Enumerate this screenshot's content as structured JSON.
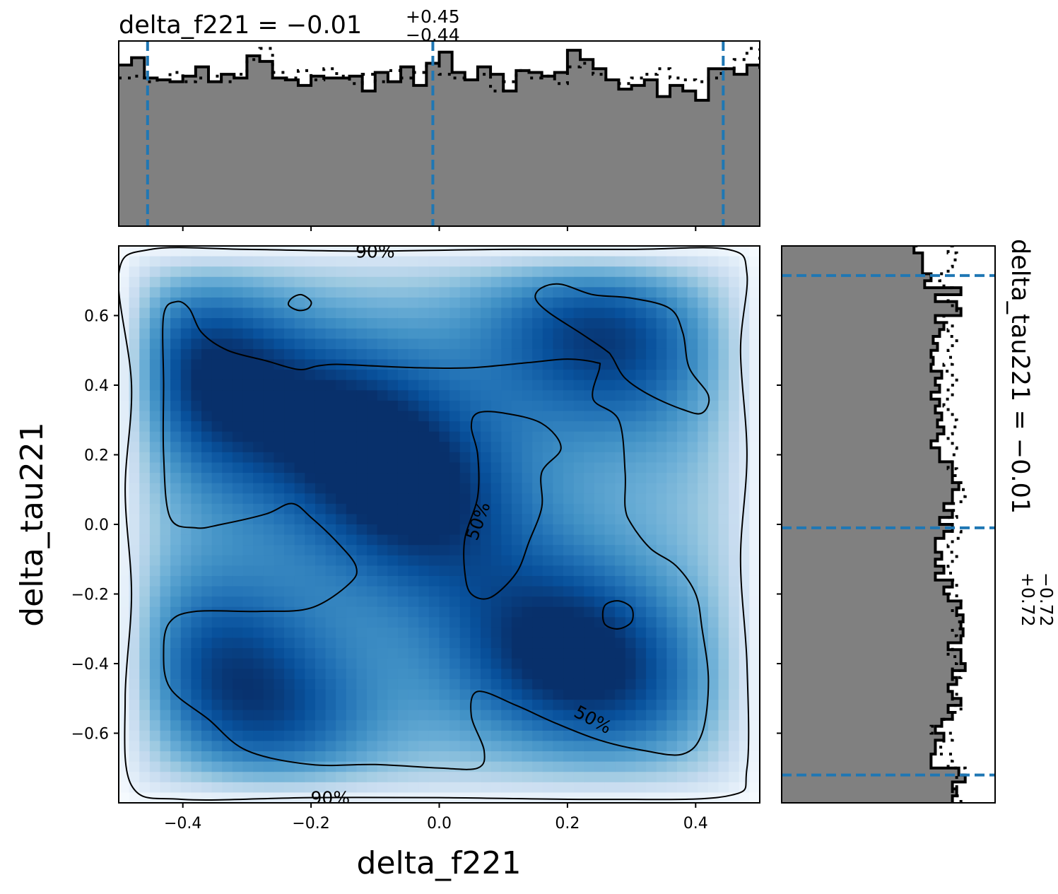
{
  "chart_data": [
    {
      "panel": "top-marginal",
      "type": "histogram",
      "title": {
        "param": "delta_f221",
        "median": "−0.01",
        "plus": "+0.45",
        "minus": "−0.44"
      },
      "xlim": [
        -0.5,
        0.5
      ],
      "x_ticks": [
        -0.4,
        -0.2,
        0.0,
        0.2,
        0.4
      ],
      "quantile_lines": [
        -0.455,
        -0.01,
        0.443
      ],
      "bin_edges_start": -0.5,
      "bin_width": 0.02,
      "solid_heights": [
        0.87,
        0.91,
        0.8,
        0.79,
        0.78,
        0.81,
        0.86,
        0.78,
        0.82,
        0.8,
        0.92,
        0.89,
        0.8,
        0.79,
        0.76,
        0.81,
        0.8,
        0.8,
        0.81,
        0.73,
        0.83,
        0.78,
        0.86,
        0.76,
        0.88,
        0.94,
        0.83,
        0.79,
        0.86,
        0.82,
        0.73,
        0.84,
        0.83,
        0.81,
        0.83,
        0.95,
        0.9,
        0.85,
        0.79,
        0.74,
        0.76,
        0.79,
        0.7,
        0.76,
        0.73,
        0.68,
        0.85,
        0.85,
        0.82,
        0.87,
        0.87,
        0.87,
        0.79,
        0.82,
        0.8,
        0.83,
        0.76,
        0.78,
        0.74,
        0.75,
        0.72,
        0.84,
        0.79,
        0.84,
        0.75,
        0.84,
        0.81,
        0.73,
        0.82,
        0.81,
        0.86,
        0.84,
        0.71,
        0.87,
        0.72,
        0.68,
        0.92,
        0.75
      ],
      "dashed_heights": [
        0.8,
        0.81,
        0.78,
        0.79,
        0.83,
        0.78,
        0.8,
        0.81,
        0.78,
        0.82,
        0.9,
        0.96,
        0.83,
        0.8,
        0.84,
        0.79,
        0.85,
        0.81,
        0.77,
        0.82,
        0.78,
        0.84,
        0.8,
        0.83,
        0.88,
        0.82,
        0.8,
        0.79,
        0.82,
        0.73,
        0.78,
        0.84,
        0.8,
        0.81,
        0.77,
        0.86,
        0.88,
        0.82,
        0.79,
        0.77,
        0.8,
        0.82,
        0.85,
        0.8,
        0.79,
        0.78,
        0.8,
        0.85,
        0.9,
        0.96,
        0.84,
        0.78,
        0.75,
        0.8,
        0.83,
        0.81,
        0.76,
        0.8,
        0.82,
        0.86,
        0.84,
        0.86,
        0.88,
        0.82,
        0.8,
        0.84,
        0.86,
        0.78,
        0.82,
        0.8,
        0.85,
        0.84,
        0.88,
        0.84,
        0.82,
        0.86,
        0.88,
        0.8
      ]
    },
    {
      "panel": "joint",
      "type": "heatmap",
      "xlabel": "delta_f221",
      "ylabel": "delta_tau221",
      "xlim": [
        -0.5,
        0.5
      ],
      "ylim": [
        -0.8,
        0.8
      ],
      "x_ticks": [
        -0.4,
        -0.2,
        0.0,
        0.2,
        0.4
      ],
      "x_tick_labels": [
        "−0.4",
        "−0.2",
        "0.0",
        "0.2",
        "0.4"
      ],
      "y_ticks": [
        0.6,
        0.4,
        0.2,
        0.0,
        -0.2,
        -0.4,
        -0.6
      ],
      "y_tick_labels": [
        "0.6",
        "0.4",
        "0.2",
        "0.0",
        "−0.2",
        "−0.4",
        "−0.6"
      ],
      "colormap": "Blues",
      "density_peaks": [
        {
          "x": -0.36,
          "y": 0.36,
          "w": 1.0
        },
        {
          "x": -0.14,
          "y": 0.28,
          "w": 1.05
        },
        {
          "x": -0.02,
          "y": 0.05,
          "w": 1.1
        },
        {
          "x": 0.16,
          "y": -0.34,
          "w": 1.05
        },
        {
          "x": -0.38,
          "y": -0.37,
          "w": 0.95
        },
        {
          "x": -0.25,
          "y": -0.6,
          "w": 0.95
        },
        {
          "x": 0.3,
          "y": -0.47,
          "w": 0.85
        },
        {
          "x": 0.2,
          "y": 0.62,
          "w": 0.85
        },
        {
          "x": 0.32,
          "y": 0.5,
          "w": 0.75
        },
        {
          "x": -0.42,
          "y": 0.58,
          "w": 0.8
        }
      ],
      "contour_labels": [
        {
          "text": "90%",
          "x": -0.1,
          "y": 0.785,
          "angle": 0
        },
        {
          "text": "90%",
          "x": -0.17,
          "y": -0.785,
          "angle": 0
        },
        {
          "text": "50%",
          "x": 0.06,
          "y": 0.01,
          "angle": -70
        },
        {
          "text": "50%",
          "x": 0.24,
          "y": -0.56,
          "angle": 28
        }
      ],
      "contours": {
        "outer_90": [
          [
            -0.5,
            0.72
          ],
          [
            -0.45,
            0.79
          ],
          [
            -0.3,
            0.79
          ],
          [
            -0.12,
            0.785
          ],
          [
            0.1,
            0.79
          ],
          [
            0.3,
            0.79
          ],
          [
            0.45,
            0.79
          ],
          [
            0.48,
            0.72
          ],
          [
            0.47,
            0.5
          ],
          [
            0.48,
            0.2
          ],
          [
            0.47,
            -0.1
          ],
          [
            0.48,
            -0.4
          ],
          [
            0.48,
            -0.7
          ],
          [
            0.45,
            -0.78
          ],
          [
            0.25,
            -0.79
          ],
          [
            0.0,
            -0.785
          ],
          [
            -0.2,
            -0.785
          ],
          [
            -0.4,
            -0.79
          ],
          [
            -0.48,
            -0.75
          ],
          [
            -0.49,
            -0.5
          ],
          [
            -0.48,
            -0.2
          ],
          [
            -0.49,
            0.1
          ],
          [
            -0.48,
            0.4
          ]
        ],
        "left_50": [
          [
            -0.43,
            0.6
          ],
          [
            -0.41,
            0.64
          ],
          [
            -0.39,
            0.62
          ],
          [
            -0.37,
            0.55
          ],
          [
            -0.33,
            0.5
          ],
          [
            -0.27,
            0.47
          ],
          [
            -0.22,
            0.445
          ],
          [
            -0.19,
            0.455
          ],
          [
            -0.16,
            0.46
          ],
          [
            -0.1,
            0.455
          ],
          [
            -0.03,
            0.45
          ],
          [
            0.05,
            0.45
          ],
          [
            0.14,
            0.465
          ],
          [
            0.2,
            0.475
          ],
          [
            0.245,
            0.465
          ],
          [
            0.25,
            0.45
          ],
          [
            0.24,
            0.36
          ],
          [
            0.28,
            0.3
          ],
          [
            0.29,
            0.15
          ],
          [
            0.29,
            0.05
          ],
          [
            0.3,
            0.0
          ],
          [
            0.33,
            -0.07
          ],
          [
            0.37,
            -0.12
          ],
          [
            0.4,
            -0.2
          ],
          [
            0.41,
            -0.3
          ],
          [
            0.42,
            -0.45
          ],
          [
            0.41,
            -0.6
          ],
          [
            0.38,
            -0.66
          ],
          [
            0.32,
            -0.65
          ],
          [
            0.25,
            -0.62
          ],
          [
            0.18,
            -0.57
          ],
          [
            0.12,
            -0.52
          ],
          [
            0.06,
            -0.48
          ],
          [
            0.05,
            -0.55
          ],
          [
            0.07,
            -0.65
          ],
          [
            0.06,
            -0.7
          ],
          [
            0.0,
            -0.7
          ],
          [
            -0.1,
            -0.69
          ],
          [
            -0.2,
            -0.69
          ],
          [
            -0.3,
            -0.65
          ],
          [
            -0.36,
            -0.56
          ],
          [
            -0.42,
            -0.47
          ],
          [
            -0.43,
            -0.36
          ],
          [
            -0.42,
            -0.28
          ],
          [
            -0.38,
            -0.25
          ],
          [
            -0.28,
            -0.25
          ],
          [
            -0.2,
            -0.24
          ],
          [
            -0.14,
            -0.17
          ],
          [
            -0.13,
            -0.12
          ],
          [
            -0.16,
            -0.05
          ],
          [
            -0.2,
            0.02
          ],
          [
            -0.23,
            0.06
          ],
          [
            -0.27,
            0.03
          ],
          [
            -0.34,
            0.0
          ],
          [
            -0.38,
            -0.01
          ],
          [
            -0.42,
            0.02
          ],
          [
            -0.43,
            0.2
          ],
          [
            -0.43,
            0.4
          ]
        ],
        "top_right_50": [
          [
            0.16,
            0.68
          ],
          [
            0.19,
            0.69
          ],
          [
            0.24,
            0.66
          ],
          [
            0.3,
            0.65
          ],
          [
            0.36,
            0.62
          ],
          [
            0.38,
            0.55
          ],
          [
            0.39,
            0.45
          ],
          [
            0.42,
            0.37
          ],
          [
            0.41,
            0.32
          ],
          [
            0.38,
            0.33
          ],
          [
            0.33,
            0.37
          ],
          [
            0.29,
            0.42
          ],
          [
            0.27,
            0.48
          ],
          [
            0.26,
            0.5
          ],
          [
            0.22,
            0.55
          ],
          [
            0.17,
            0.61
          ],
          [
            0.15,
            0.65
          ]
        ],
        "center_inner_50": [
          [
            0.06,
            0.32
          ],
          [
            0.1,
            0.32
          ],
          [
            0.16,
            0.29
          ],
          [
            0.19,
            0.22
          ],
          [
            0.16,
            0.15
          ],
          [
            0.16,
            0.05
          ],
          [
            0.14,
            -0.05
          ],
          [
            0.12,
            -0.14
          ],
          [
            0.08,
            -0.21
          ],
          [
            0.05,
            -0.2
          ],
          [
            0.04,
            -0.14
          ],
          [
            0.04,
            -0.04
          ],
          [
            0.06,
            0.08
          ],
          [
            0.06,
            0.2
          ],
          [
            0.05,
            0.28
          ]
        ],
        "small_island_a": [
          [
            -0.23,
            0.65
          ],
          [
            -0.215,
            0.66
          ],
          [
            -0.2,
            0.64
          ],
          [
            -0.205,
            0.62
          ],
          [
            -0.22,
            0.615
          ],
          [
            -0.235,
            0.63
          ]
        ],
        "small_island_b": [
          [
            0.26,
            -0.23
          ],
          [
            0.28,
            -0.22
          ],
          [
            0.3,
            -0.24
          ],
          [
            0.3,
            -0.28
          ],
          [
            0.28,
            -0.3
          ],
          [
            0.26,
            -0.29
          ],
          [
            0.255,
            -0.26
          ]
        ]
      }
    },
    {
      "panel": "right-marginal",
      "type": "histogram",
      "orientation": "horizontal",
      "title": {
        "param": "delta_tau221",
        "median": "−0.01",
        "plus": "+0.72",
        "minus": "−0.72"
      },
      "ylim": [
        -0.8,
        0.8
      ],
      "y_ticks": [
        0.6,
        0.4,
        0.2,
        0.0,
        -0.2,
        -0.4,
        -0.6
      ],
      "quantile_lines": [
        0.715,
        -0.01,
        -0.72
      ],
      "bin_edges_start": -0.8,
      "bin_width": 0.02,
      "solid_widths": [
        0.8,
        0.82,
        0.8,
        0.86,
        0.83,
        0.7,
        0.7,
        0.72,
        0.72,
        0.76,
        0.72,
        0.75,
        0.8,
        0.78,
        0.84,
        0.8,
        0.78,
        0.82,
        0.8,
        0.86,
        0.84,
        0.84,
        0.78,
        0.84,
        0.85,
        0.84,
        0.85,
        0.82,
        0.84,
        0.78,
        0.76,
        0.8,
        0.72,
        0.76,
        0.72,
        0.75,
        0.72,
        0.72,
        0.76,
        0.8,
        0.74,
        0.8,
        0.76,
        0.8,
        0.8,
        0.83,
        0.8,
        0.8,
        0.8,
        0.74,
        0.74,
        0.7,
        0.73,
        0.76,
        0.73,
        0.75,
        0.72,
        0.74,
        0.7,
        0.74,
        0.72,
        0.75,
        0.7,
        0.71,
        0.7,
        0.73,
        0.71,
        0.74,
        0.76,
        0.72,
        0.84,
        0.82,
        0.72,
        0.84,
        0.67,
        0.7,
        0.66,
        0.66,
        0.66,
        0.62,
        0.63,
        0.75,
        0.72,
        0.74,
        0.8,
        0.7,
        0.73,
        0.76,
        0.8,
        0.84,
        0.8,
        0.74,
        0.82,
        0.78,
        0.82,
        0.74,
        0.76,
        0.78,
        0.81,
        0.83,
        0.82,
        0.8,
        0.83,
        0.8,
        0.81,
        0.82,
        0.78,
        0.8,
        0.68,
        0.74,
        0.7,
        0.74,
        0.72,
        0.74,
        0.76,
        0.7,
        0.72,
        0.7,
        0.66,
        0.68,
        0.72,
        0.75,
        0.74,
        0.68
      ],
      "dashed_widths": [
        0.84,
        0.8,
        0.82,
        0.82,
        0.86,
        0.78,
        0.8,
        0.72,
        0.76,
        0.8,
        0.7,
        0.76,
        0.8,
        0.84,
        0.8,
        0.82,
        0.78,
        0.8,
        0.84,
        0.8,
        0.82,
        0.78,
        0.8,
        0.82,
        0.8,
        0.84,
        0.82,
        0.8,
        0.84,
        0.82,
        0.78,
        0.82,
        0.8,
        0.78,
        0.8,
        0.82,
        0.78,
        0.8,
        0.84,
        0.8,
        0.78,
        0.82,
        0.8,
        0.84,
        0.86,
        0.84,
        0.8,
        0.82,
        0.78,
        0.8,
        0.82,
        0.8,
        0.78,
        0.8,
        0.82,
        0.8,
        0.78,
        0.76,
        0.8,
        0.78,
        0.82,
        0.8,
        0.76,
        0.8,
        0.78,
        0.8,
        0.82,
        0.78,
        0.8,
        0.76,
        0.82,
        0.8,
        0.78,
        0.8,
        0.76,
        0.74,
        0.78,
        0.8,
        0.82,
        0.78,
        0.8,
        0.76,
        0.8,
        0.82,
        0.8,
        0.78,
        0.8,
        0.82,
        0.8,
        0.84,
        0.82,
        0.8,
        0.84,
        0.82,
        0.8,
        0.84,
        0.82,
        0.8,
        0.82,
        0.84,
        0.82,
        0.8,
        0.84,
        0.82,
        0.84,
        0.82,
        0.8,
        0.82,
        0.8,
        0.78,
        0.82,
        0.8,
        0.78,
        0.8,
        0.82,
        0.8,
        0.78,
        0.8,
        0.76,
        0.78,
        0.8,
        0.82,
        0.8,
        0.78
      ]
    }
  ]
}
